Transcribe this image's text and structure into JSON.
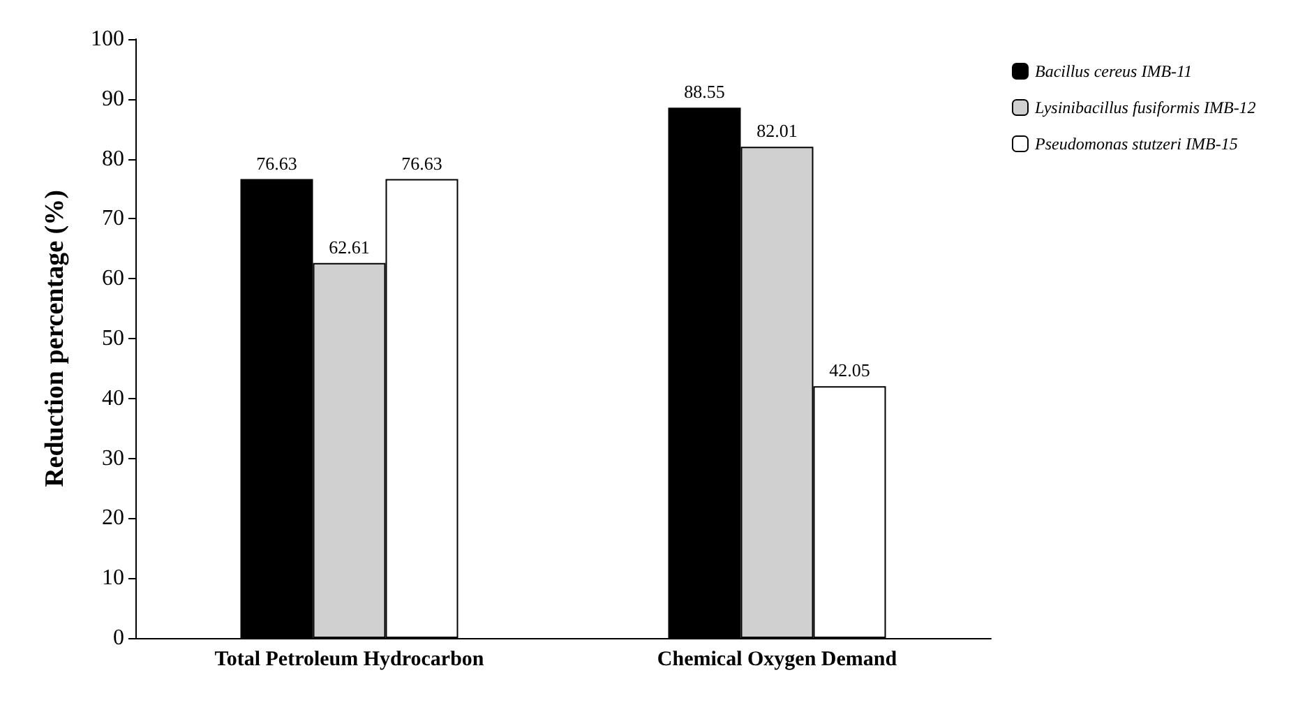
{
  "chart_data": {
    "type": "bar",
    "ylabel": "Reduction percentage (%)",
    "categories": [
      "Total Petroleum Hydrocarbon",
      "Chemical Oxygen Demand"
    ],
    "series": [
      {
        "name": "Bacillus cereus IMB-11",
        "color": "#000000",
        "values": [
          76.63,
          88.55
        ]
      },
      {
        "name": "Lysinibacillus fusiformis IMB-12",
        "color": "#d0d0d0",
        "values": [
          62.61,
          82.01
        ]
      },
      {
        "name": "Pseudomonas stutzeri IMB-15",
        "color": "#ffffff",
        "values": [
          76.63,
          42.05
        ]
      }
    ],
    "ylim": [
      0,
      100
    ],
    "yticks": [
      0,
      10,
      20,
      30,
      40,
      50,
      60,
      70,
      80,
      90,
      100
    ],
    "data_labels": true,
    "grid": false,
    "legend": "top right"
  }
}
